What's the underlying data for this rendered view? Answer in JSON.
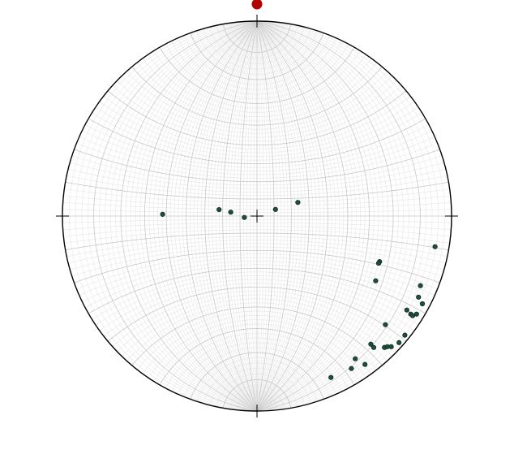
{
  "net": {
    "projection": "equal-angle",
    "grid_interval_minor_deg": 2,
    "grid_interval_major_deg": 10,
    "colors": {
      "primitive": "#000000",
      "grid_minor": "#e6e6e6",
      "grid_major": "#c8c8c8",
      "axes": "#000000",
      "pole_fill": "#1f4f3a",
      "pole_stroke": "#0d2a1d",
      "north_marker": "#b30000",
      "background": "#ffffff"
    }
  },
  "north_marker": {
    "icon": "north-marker-dot"
  },
  "poles": [
    {
      "u": -0.485,
      "v": 0.009
    },
    {
      "u": -0.195,
      "v": 0.033
    },
    {
      "u": -0.135,
      "v": 0.02
    },
    {
      "u": -0.065,
      "v": -0.007
    },
    {
      "u": 0.095,
      "v": 0.034
    },
    {
      "u": 0.21,
      "v": 0.07
    },
    {
      "u": 0.915,
      "v": -0.157
    },
    {
      "u": 0.63,
      "v": -0.234
    },
    {
      "u": 0.625,
      "v": -0.242
    },
    {
      "u": 0.61,
      "v": -0.332
    },
    {
      "u": 0.84,
      "v": -0.357
    },
    {
      "u": 0.83,
      "v": -0.416
    },
    {
      "u": 0.85,
      "v": -0.45
    },
    {
      "u": 0.77,
      "v": -0.482
    },
    {
      "u": 0.79,
      "v": -0.503
    },
    {
      "u": 0.8,
      "v": -0.511
    },
    {
      "u": 0.82,
      "v": -0.503
    },
    {
      "u": 0.66,
      "v": -0.557
    },
    {
      "u": 0.76,
      "v": -0.611
    },
    {
      "u": 0.585,
      "v": -0.657
    },
    {
      "u": 0.6,
      "v": -0.674
    },
    {
      "u": 0.655,
      "v": -0.674
    },
    {
      "u": 0.67,
      "v": -0.67
    },
    {
      "u": 0.69,
      "v": -0.67
    },
    {
      "u": 0.73,
      "v": -0.649
    },
    {
      "u": 0.505,
      "v": -0.732
    },
    {
      "u": 0.555,
      "v": -0.761
    },
    {
      "u": 0.485,
      "v": -0.782
    },
    {
      "u": 0.38,
      "v": -0.828
    }
  ]
}
